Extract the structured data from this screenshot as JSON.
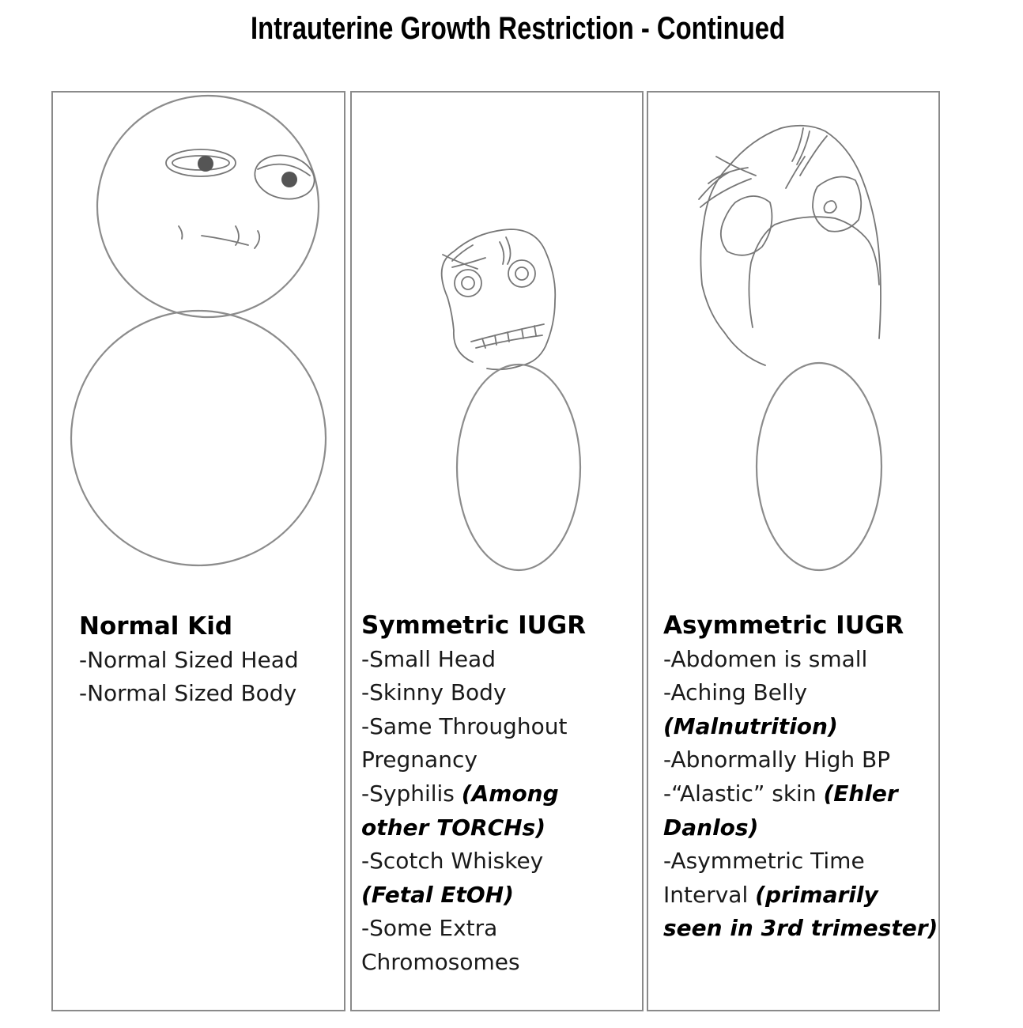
{
  "title": "Intrauterine Growth Restriction - Continued",
  "panels": [
    {
      "heading": "Normal Kid",
      "lines": [
        "-Normal Sized Head",
        "-Normal Sized Body"
      ]
    },
    {
      "heading": "Symmetric IUGR",
      "lines": [
        "-Small Head",
        "-Skinny Body",
        "-Same Throughout",
        "Pregnancy",
        "-Syphilis ",
        "(Among",
        "other TORCHs)",
        "-Scotch Whiskey",
        "(Fetal EtOH)",
        "-Some Extra",
        "Chromosomes"
      ]
    },
    {
      "heading": "Asymmetric IUGR",
      "lines": [
        "-Abdomen is small",
        "-Aching Belly",
        "(Malnutrition)",
        "-Abnormally High BP",
        "-“Alastic” skin ",
        "(Ehler",
        "Danlos)",
        "-Asymmetric Time",
        "Interval ",
        "(primarily",
        "seen in 3rd trimester)"
      ]
    }
  ]
}
